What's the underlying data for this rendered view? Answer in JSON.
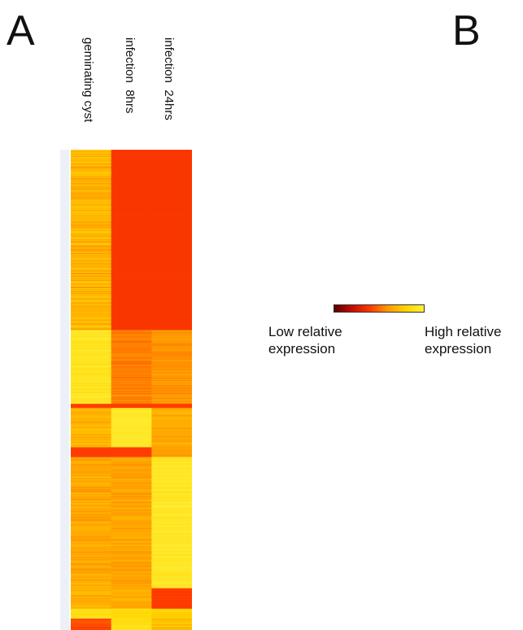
{
  "panels": {
    "a": "A",
    "b": "B"
  },
  "chart_data": {
    "type": "heatmap",
    "columns": [
      "geminating cyst",
      "infection  8hrs",
      "infection  24hrs"
    ],
    "colorbar": {
      "low_label": "Low relative\nexpression",
      "high_label": "High relative\nexpression",
      "colors": [
        "#5a0000",
        "#c40d00",
        "#ff3a00",
        "#ff9a00",
        "#ffd500",
        "#fff03a"
      ]
    },
    "clusters": [
      {
        "rows": 220,
        "values": [
          0.55,
          0.12,
          0.12
        ],
        "jitter": [
          0.14,
          0.0,
          0.0
        ]
      },
      {
        "rows": 90,
        "values": [
          0.88,
          0.35,
          0.42
        ],
        "jitter": [
          0.07,
          0.06,
          0.06
        ]
      },
      {
        "rows": 5,
        "values": [
          0.15,
          0.15,
          0.15
        ],
        "jitter": [
          0.0,
          0.0,
          0.0
        ]
      },
      {
        "rows": 48,
        "values": [
          0.55,
          0.92,
          0.52
        ],
        "jitter": [
          0.1,
          0.04,
          0.1
        ]
      },
      {
        "rows": 12,
        "values": [
          0.15,
          0.15,
          0.45
        ],
        "jitter": [
          0.0,
          0.0,
          0.05
        ]
      },
      {
        "rows": 160,
        "values": [
          0.5,
          0.48,
          0.9
        ],
        "jitter": [
          0.1,
          0.08,
          0.06
        ]
      },
      {
        "rows": 25,
        "values": [
          0.55,
          0.52,
          0.15
        ],
        "jitter": [
          0.1,
          0.08,
          0.02
        ]
      },
      {
        "rows": 12,
        "values": [
          0.8,
          0.75,
          0.7
        ],
        "jitter": [
          0.05,
          0.05,
          0.05
        ]
      },
      {
        "rows": 14,
        "values": [
          0.2,
          0.82,
          0.6
        ],
        "jitter": [
          0.05,
          0.05,
          0.1
        ]
      }
    ]
  }
}
